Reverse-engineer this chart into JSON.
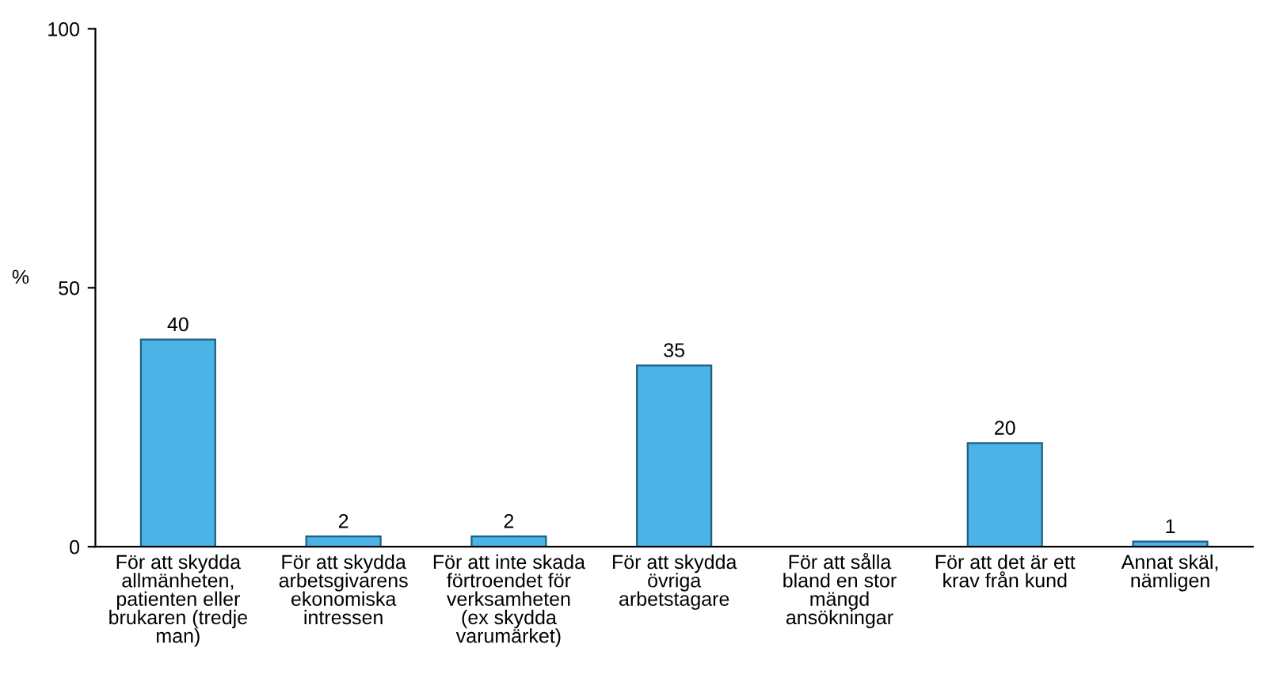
{
  "chart_data": {
    "type": "bar",
    "ylabel": "%",
    "categories": [
      "För att skydda\nallmänheten,\npatienten eller\nbrukaren (tredje\nman)",
      "För att skydda\narbetsgivarens\nekonomiska\nintressen",
      "För att inte skada\nförtroendet för\nverksamheten\n(ex skydda\nvarumärket)",
      "För att skydda\növriga\narbetstagare",
      "För att sålla\nbland en stor\nmängd\nansökningar",
      "För att det är ett\nkrav från kund",
      "Annat skäl,\nnämligen"
    ],
    "values": [
      40,
      2,
      2,
      35,
      null,
      20,
      1
    ],
    "color": "#4bb3e6",
    "ylim": [
      0,
      100
    ],
    "yticks": [
      0,
      50,
      100
    ],
    "grid": false,
    "data_labels": true
  }
}
